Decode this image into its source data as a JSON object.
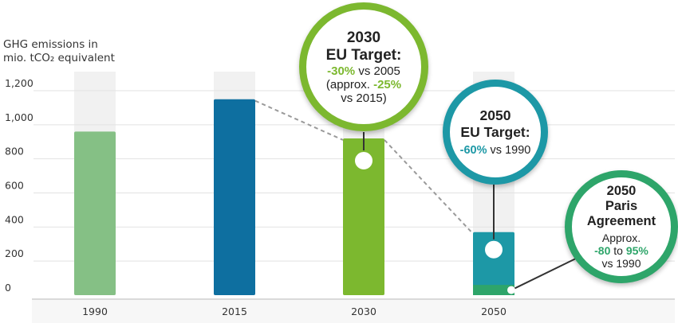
{
  "chart_data": {
    "type": "bar",
    "ylabel_line1": "GHG emissions in",
    "ylabel_line2": "mio. tCO₂ equivalent",
    "ylim": [
      0,
      1300
    ],
    "yticks": [
      "0",
      "200",
      "400",
      "600",
      "800",
      "1,000",
      "1,200"
    ],
    "categories": [
      "1990",
      "2015",
      "2030",
      "2050"
    ],
    "values": [
      960,
      1150,
      920,
      370
    ],
    "stack_base_2050": 60,
    "colors": {
      "1990": "#85c085",
      "2015": "#0e6fa0",
      "2030": "#7cb82f",
      "2050": "#1d98a6",
      "2050_base": "#2ea56a",
      "band": "#f1f1f1",
      "grid": "#e2e2e2",
      "connector": "#9a9a9a"
    },
    "grid": true
  },
  "callouts": {
    "c2030": {
      "title1": "2030",
      "title2": "EU Target:",
      "l1_hl": "-30%",
      "l1_rest": " vs 2005",
      "l2_pre": "(approx. ",
      "l2_hl": "-25%",
      "l3": "vs 2015)"
    },
    "c2050eu": {
      "title1": "2050",
      "title2": "EU Target:",
      "l1_hl": "-60%",
      "l1_rest": " vs 1990"
    },
    "c2050p": {
      "title1": "2050",
      "title2": "Paris",
      "title3": "Agreement",
      "l1": "Approx.",
      "l2_hl1": "-80",
      "l2_mid": " to ",
      "l2_hl2": "95%",
      "l3": "vs 1990"
    }
  }
}
